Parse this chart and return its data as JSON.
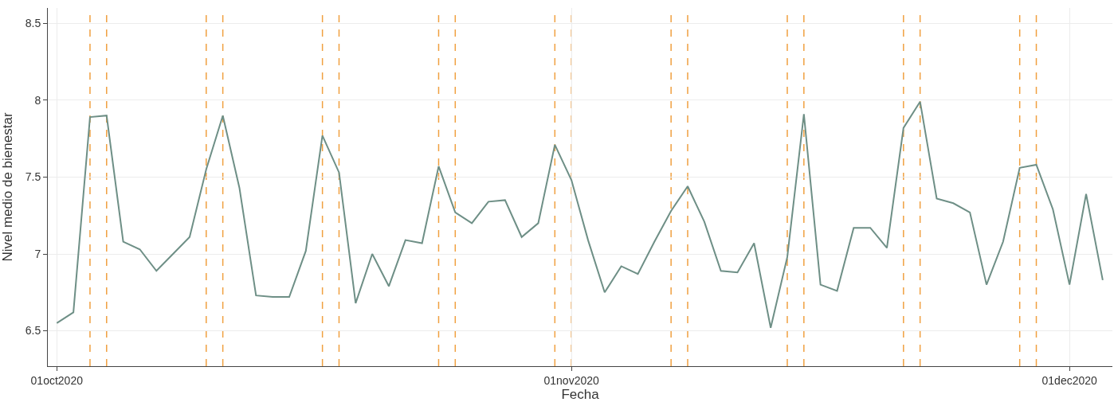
{
  "chart_data": {
    "type": "line",
    "xlabel": "Fecha",
    "ylabel": "Nivel medio de bienestar",
    "x": [
      "2020-10-01",
      "2020-10-02",
      "2020-10-03",
      "2020-10-04",
      "2020-10-05",
      "2020-10-06",
      "2020-10-07",
      "2020-10-08",
      "2020-10-09",
      "2020-10-10",
      "2020-10-11",
      "2020-10-12",
      "2020-10-13",
      "2020-10-14",
      "2020-10-15",
      "2020-10-16",
      "2020-10-17",
      "2020-10-18",
      "2020-10-19",
      "2020-10-20",
      "2020-10-21",
      "2020-10-22",
      "2020-10-23",
      "2020-10-24",
      "2020-10-25",
      "2020-10-26",
      "2020-10-27",
      "2020-10-28",
      "2020-10-29",
      "2020-10-30",
      "2020-10-31",
      "2020-11-01",
      "2020-11-02",
      "2020-11-03",
      "2020-11-04",
      "2020-11-05",
      "2020-11-06",
      "2020-11-07",
      "2020-11-08",
      "2020-11-09",
      "2020-11-10",
      "2020-11-11",
      "2020-11-12",
      "2020-11-13",
      "2020-11-14",
      "2020-11-15",
      "2020-11-16",
      "2020-11-17",
      "2020-11-18",
      "2020-11-19",
      "2020-11-20",
      "2020-11-21",
      "2020-11-22",
      "2020-11-23",
      "2020-11-24",
      "2020-11-25",
      "2020-11-26",
      "2020-11-27",
      "2020-11-28",
      "2020-11-29",
      "2020-11-30",
      "2020-12-01",
      "2020-12-02",
      "2020-12-03"
    ],
    "series": [
      {
        "color": "#6e8f86",
        "values": [
          6.55,
          6.62,
          7.89,
          7.9,
          7.08,
          7.03,
          6.89,
          7.0,
          7.11,
          7.55,
          7.9,
          7.43,
          6.73,
          6.72,
          6.72,
          7.02,
          7.77,
          7.53,
          6.68,
          7.0,
          6.79,
          7.09,
          7.07,
          7.57,
          7.27,
          7.2,
          7.34,
          7.35,
          7.11,
          7.2,
          7.71,
          7.48,
          7.09,
          6.75,
          6.92,
          6.87,
          7.08,
          7.28,
          7.44,
          7.21,
          6.89,
          6.88,
          7.07,
          6.52,
          6.98,
          7.91,
          6.8,
          6.76,
          7.17,
          7.17,
          7.04,
          7.82,
          7.99,
          7.36,
          7.33,
          7.27,
          6.8,
          7.08,
          7.56,
          7.58,
          7.29,
          6.8,
          7.39,
          6.83
        ]
      }
    ],
    "xlim": [
      "2020-09-30T11:00",
      "2020-12-03T14:00"
    ],
    "xticks": [
      {
        "value": "2020-10-01",
        "label": "01oct2020"
      },
      {
        "value": "2020-11-01",
        "label": "01nov2020"
      },
      {
        "value": "2020-12-01",
        "label": "01dec2020"
      }
    ],
    "ylim": [
      6.27,
      8.6
    ],
    "yticks": [
      6.5,
      7,
      7.5,
      8,
      8.5
    ],
    "ref_lines": [
      {
        "axis": "x",
        "value": "2020-10-03",
        "color": "#f0a040",
        "line_style": "dashed"
      },
      {
        "axis": "x",
        "value": "2020-10-04",
        "color": "#f0a040",
        "line_style": "dashed"
      },
      {
        "axis": "x",
        "value": "2020-10-10",
        "color": "#f0a040",
        "line_style": "dashed"
      },
      {
        "axis": "x",
        "value": "2020-10-11",
        "color": "#f0a040",
        "line_style": "dashed"
      },
      {
        "axis": "x",
        "value": "2020-10-17",
        "color": "#f0a040",
        "line_style": "dashed"
      },
      {
        "axis": "x",
        "value": "2020-10-18",
        "color": "#f0a040",
        "line_style": "dashed"
      },
      {
        "axis": "x",
        "value": "2020-10-24",
        "color": "#f0a040",
        "line_style": "dashed"
      },
      {
        "axis": "x",
        "value": "2020-10-25",
        "color": "#f0a040",
        "line_style": "dashed"
      },
      {
        "axis": "x",
        "value": "2020-10-31",
        "color": "#f0a040",
        "line_style": "dashed"
      },
      {
        "axis": "x",
        "value": "2020-11-01",
        "color": "#f0a040",
        "line_style": "dashed"
      },
      {
        "axis": "x",
        "value": "2020-11-07",
        "color": "#f0a040",
        "line_style": "dashed"
      },
      {
        "axis": "x",
        "value": "2020-11-08",
        "color": "#f0a040",
        "line_style": "dashed"
      },
      {
        "axis": "x",
        "value": "2020-11-14",
        "color": "#f0a040",
        "line_style": "dashed"
      },
      {
        "axis": "x",
        "value": "2020-11-15",
        "color": "#f0a040",
        "line_style": "dashed"
      },
      {
        "axis": "x",
        "value": "2020-11-21",
        "color": "#f0a040",
        "line_style": "dashed"
      },
      {
        "axis": "x",
        "value": "2020-11-22",
        "color": "#f0a040",
        "line_style": "dashed"
      },
      {
        "axis": "x",
        "value": "2020-11-28",
        "color": "#f0a040",
        "line_style": "dashed"
      },
      {
        "axis": "x",
        "value": "2020-11-29",
        "color": "#f0a040",
        "line_style": "dashed"
      }
    ],
    "grid": true,
    "marker": "none",
    "line_style": "solid"
  }
}
